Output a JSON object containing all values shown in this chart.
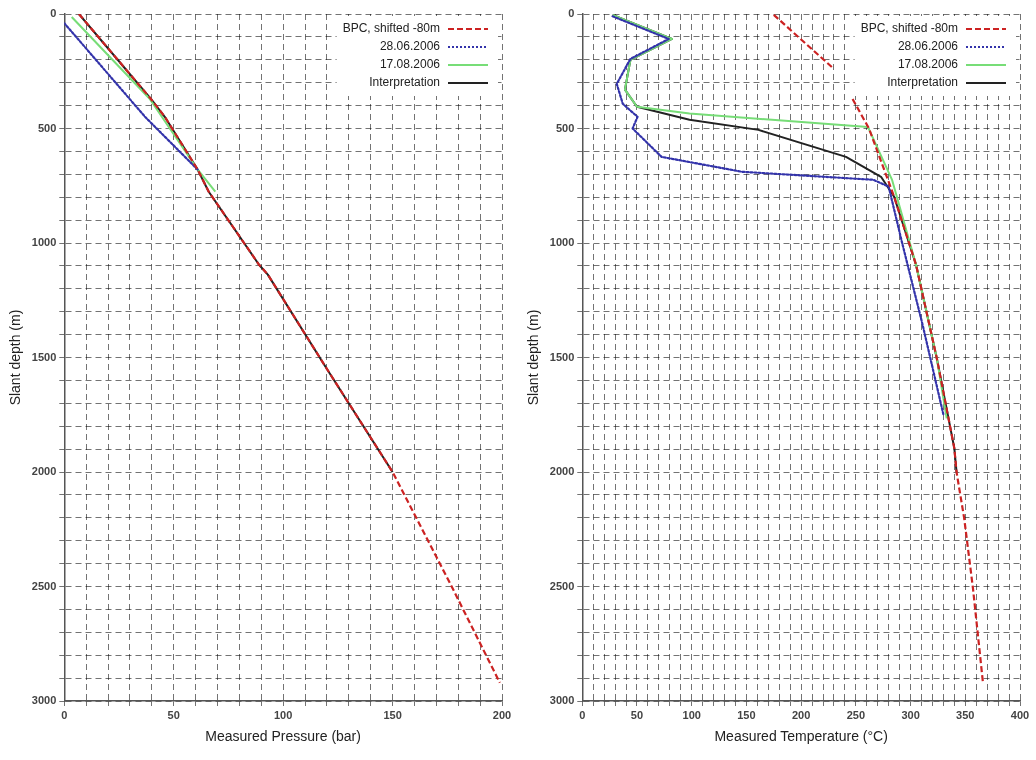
{
  "chart_data": [
    {
      "type": "line",
      "xlabel": "Measured Pressure (bar)",
      "ylabel": "Slant depth (m)",
      "xlim": [
        0,
        200
      ],
      "ylim": [
        3000,
        0
      ],
      "xticks": [
        0,
        {
          "value": 10,
          "label": null
        },
        {
          "value": 20,
          "label": null
        },
        {
          "value": 30,
          "label": null
        },
        {
          "value": 40,
          "label": null
        },
        50,
        {
          "value": 60,
          "label": null
        },
        {
          "value": 70,
          "label": null
        },
        {
          "value": 80,
          "label": null
        },
        {
          "value": 90,
          "label": null
        },
        100,
        {
          "value": 110,
          "label": null
        },
        {
          "value": 120,
          "label": null
        },
        {
          "value": 130,
          "label": null
        },
        {
          "value": 140,
          "label": null
        },
        150,
        {
          "value": 160,
          "label": null
        },
        {
          "value": 170,
          "label": null
        },
        {
          "value": 180,
          "label": null
        },
        {
          "value": 190,
          "label": null
        },
        200
      ],
      "yticks": [
        0,
        {
          "value": 100,
          "label": null
        },
        {
          "value": 200,
          "label": null
        },
        {
          "value": 300,
          "label": null
        },
        {
          "value": 400,
          "label": null
        },
        500,
        {
          "value": 600,
          "label": null
        },
        {
          "value": 700,
          "label": null
        },
        {
          "value": 800,
          "label": null
        },
        {
          "value": 900,
          "label": null
        },
        1000,
        {
          "value": 1100,
          "label": null
        },
        {
          "value": 1200,
          "label": null
        },
        {
          "value": 1300,
          "label": null
        },
        {
          "value": 1400,
          "label": null
        },
        1500,
        {
          "value": 1600,
          "label": null
        },
        {
          "value": 1700,
          "label": null
        },
        {
          "value": 1800,
          "label": null
        },
        {
          "value": 1900,
          "label": null
        },
        2000,
        {
          "value": 2100,
          "label": null
        },
        {
          "value": 2200,
          "label": null
        },
        {
          "value": 2300,
          "label": null
        },
        {
          "value": 2400,
          "label": null
        },
        2500,
        {
          "value": 2600,
          "label": null
        },
        {
          "value": 2700,
          "label": null
        },
        {
          "value": 2800,
          "label": null
        },
        {
          "value": 2900,
          "label": null
        },
        3000
      ],
      "grid": true,
      "legend": "top right",
      "marker": "none",
      "series": [
        {
          "name": "BPC, shifted -80m",
          "color": "#cc2222",
          "line_style": "dashed",
          "x": [
            6.7,
            39.5,
            46,
            61,
            66,
            89,
            93,
            120,
            150,
            177,
            199
          ],
          "values": [
            0,
            370,
            450,
            680,
            776,
            1095,
            1138,
            1550,
            2000,
            2500,
            2920
          ]
        },
        {
          "name": "28.06.2006",
          "color": "#3333aa",
          "line_style": "dotted",
          "x": [
            0,
            37,
            61
          ],
          "values": [
            40,
            450,
            680
          ]
        },
        {
          "name": "17.08.2006",
          "color": "#77dd77",
          "line_style": "solid",
          "x": [
            3.4,
            39,
            61,
            69
          ],
          "values": [
            13,
            370,
            680,
            776
          ]
        },
        {
          "name": "Interpretation",
          "color": "#222222",
          "line_style": "solid",
          "x": [
            6.7,
            39.5,
            46,
            61,
            66,
            89,
            93,
            120,
            150
          ],
          "values": [
            0,
            370,
            450,
            680,
            776,
            1095,
            1138,
            1550,
            2000
          ]
        }
      ]
    },
    {
      "type": "line",
      "xlabel": "Measured Temperature (°C)",
      "ylabel": "Slant depth (m)",
      "xlim": [
        0,
        400
      ],
      "ylim": [
        3000,
        0
      ],
      "xticks": [
        0,
        {
          "value": 10,
          "label": null
        },
        {
          "value": 20,
          "label": null
        },
        {
          "value": 30,
          "label": null
        },
        {
          "value": 40,
          "label": null
        },
        50,
        {
          "value": 60,
          "label": null
        },
        {
          "value": 70,
          "label": null
        },
        {
          "value": 80,
          "label": null
        },
        {
          "value": 90,
          "label": null
        },
        100,
        {
          "value": 110,
          "label": null
        },
        {
          "value": 120,
          "label": null
        },
        {
          "value": 130,
          "label": null
        },
        {
          "value": 140,
          "label": null
        },
        150,
        {
          "value": 160,
          "label": null
        },
        {
          "value": 170,
          "label": null
        },
        {
          "value": 180,
          "label": null
        },
        {
          "value": 190,
          "label": null
        },
        200,
        {
          "value": 210,
          "label": null
        },
        {
          "value": 220,
          "label": null
        },
        {
          "value": 230,
          "label": null
        },
        {
          "value": 240,
          "label": null
        },
        250,
        {
          "value": 260,
          "label": null
        },
        {
          "value": 270,
          "label": null
        },
        {
          "value": 280,
          "label": null
        },
        {
          "value": 290,
          "label": null
        },
        300,
        {
          "value": 310,
          "label": null
        },
        {
          "value": 320,
          "label": null
        },
        {
          "value": 330,
          "label": null
        },
        {
          "value": 340,
          "label": null
        },
        350,
        {
          "value": 360,
          "label": null
        },
        {
          "value": 370,
          "label": null
        },
        {
          "value": 380,
          "label": null
        },
        {
          "value": 390,
          "label": null
        },
        400
      ],
      "yticks": [
        0,
        {
          "value": 100,
          "label": null
        },
        {
          "value": 200,
          "label": null
        },
        {
          "value": 300,
          "label": null
        },
        {
          "value": 400,
          "label": null
        },
        500,
        {
          "value": 600,
          "label": null
        },
        {
          "value": 700,
          "label": null
        },
        {
          "value": 800,
          "label": null
        },
        {
          "value": 900,
          "label": null
        },
        1000,
        {
          "value": 1100,
          "label": null
        },
        {
          "value": 1200,
          "label": null
        },
        {
          "value": 1300,
          "label": null
        },
        {
          "value": 1400,
          "label": null
        },
        1500,
        {
          "value": 1600,
          "label": null
        },
        {
          "value": 1700,
          "label": null
        },
        {
          "value": 1800,
          "label": null
        },
        {
          "value": 1900,
          "label": null
        },
        2000,
        {
          "value": 2100,
          "label": null
        },
        {
          "value": 2200,
          "label": null
        },
        {
          "value": 2300,
          "label": null
        },
        {
          "value": 2400,
          "label": null
        },
        2500,
        {
          "value": 2600,
          "label": null
        },
        {
          "value": 2700,
          "label": null
        },
        {
          "value": 2800,
          "label": null
        },
        {
          "value": 2900,
          "label": null
        },
        3000
      ],
      "grid": true,
      "legend": "top right",
      "marker": "none",
      "series": [
        {
          "name": "BPC, shifted -80m",
          "color": "#cc2222",
          "line_style": "dashed",
          "x": [
            175,
            230,
            null,
            247,
            262,
            285,
            305,
            324,
            340,
            342,
            349,
            357,
            366
          ],
          "values": [
            4,
            240,
            null,
            371,
            500,
            798,
            1095,
            1504,
            1897,
            2000,
            2202,
            2507,
            2913
          ]
        },
        {
          "name": "28.06.2006",
          "color": "#3333aa",
          "line_style": "dotted",
          "x": [
            27.7,
            79,
            44,
            31.5,
            37,
            50.5,
            46,
            72.5,
            146,
            266,
            280,
            292,
            311,
            330
          ],
          "values": [
            10,
            109,
            196,
            305,
            392,
            449,
            500,
            624,
            689,
            724,
            754,
            994,
            1357,
            1749
          ]
        },
        {
          "name": "17.08.2006",
          "color": "#77dd77",
          "line_style": "solid",
          "x": [
            27.7,
            82,
            44,
            39,
            50,
            98,
            261,
            283,
            305,
            324,
            333
          ],
          "values": [
            4,
            109,
            200,
            330,
            405,
            435,
            493,
            723,
            1095,
            1504,
            1766
          ]
        },
        {
          "name": "Interpretation",
          "color": "#222222",
          "line_style": "solid",
          "x": [
            27.7,
            82,
            44,
            39,
            50,
            98,
            161,
            241,
            273,
            285,
            305,
            324,
            340,
            342
          ],
          "values": [
            4,
            109,
            200,
            330,
            405,
            462,
            506,
            624,
            711,
            798,
            1095,
            1504,
            1897,
            2000
          ]
        }
      ]
    }
  ]
}
